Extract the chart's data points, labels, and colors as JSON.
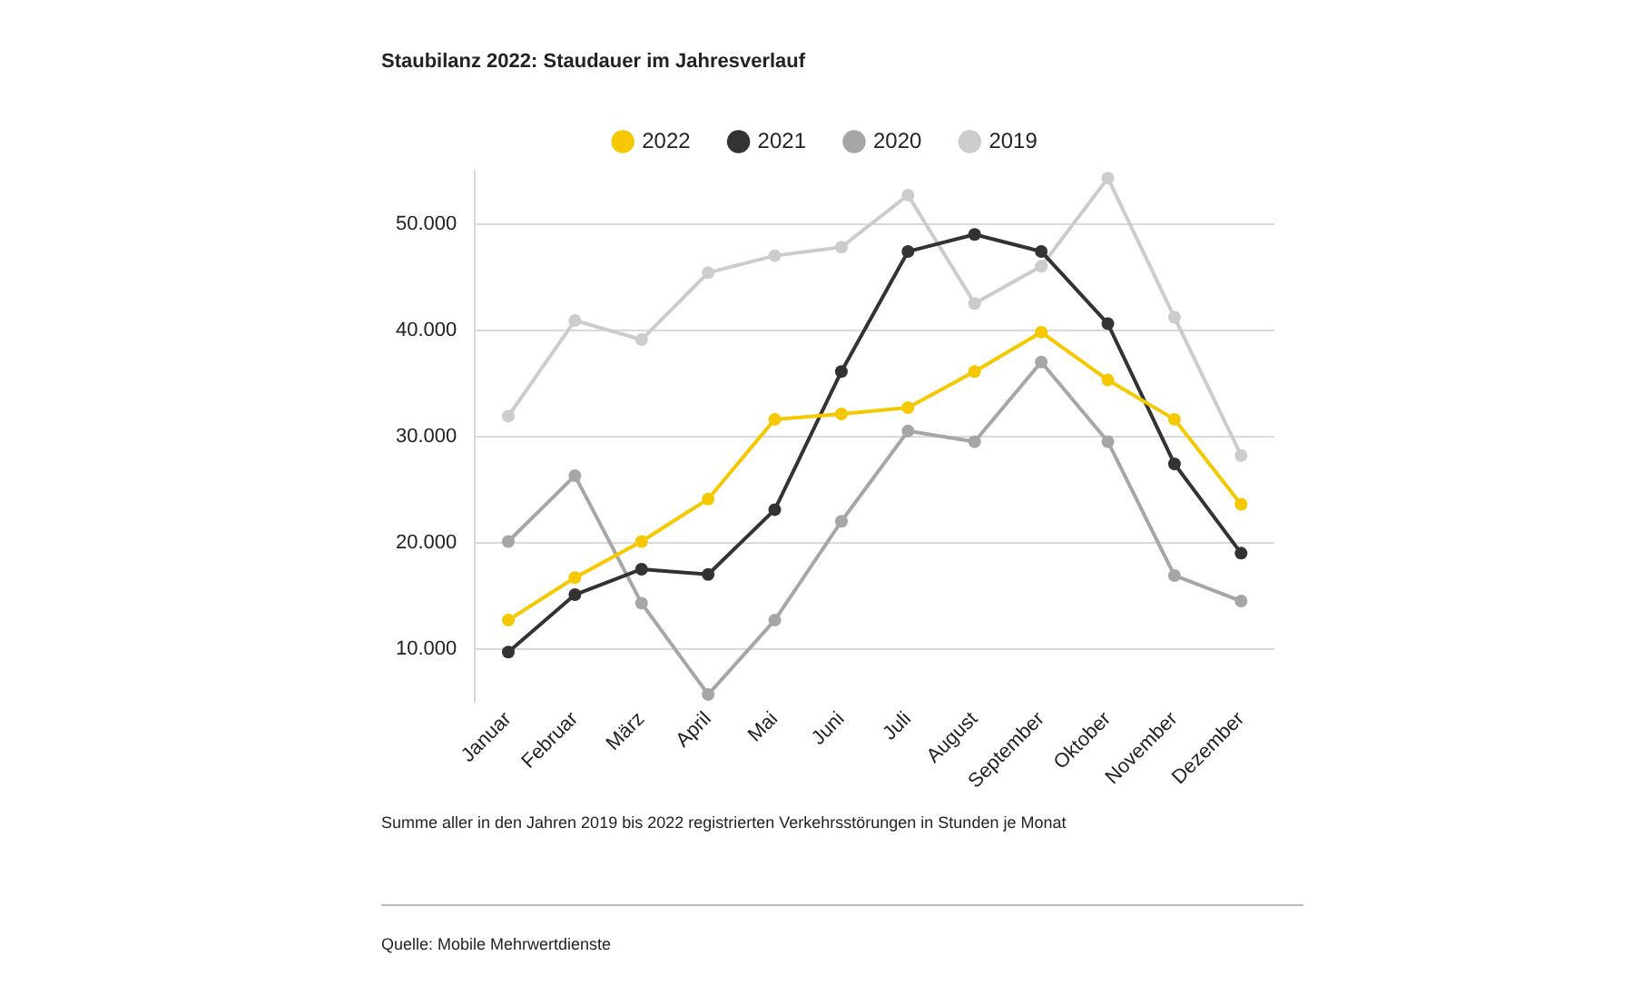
{
  "chart_data": {
    "type": "line",
    "title": "Staubilanz 2022: Staudauer im Jahresverlauf",
    "categories": [
      "Januar",
      "Februar",
      "März",
      "April",
      "Mai",
      "Juni",
      "Juli",
      "August",
      "September",
      "Oktober",
      "November",
      "Dezember"
    ],
    "series": [
      {
        "name": "2022",
        "color": "#f5c800",
        "values": [
          12700,
          16700,
          20100,
          24100,
          31600,
          32100,
          32700,
          36100,
          39800,
          35300,
          31600,
          23600
        ]
      },
      {
        "name": "2021",
        "color": "#333333",
        "values": [
          9700,
          15100,
          17500,
          17000,
          23100,
          36100,
          47400,
          49000,
          47400,
          40600,
          27400,
          19000
        ]
      },
      {
        "name": "2020",
        "color": "#a6a6a6",
        "values": [
          20100,
          26300,
          14300,
          5700,
          12700,
          22000,
          30500,
          29500,
          37000,
          29500,
          16900,
          14500
        ]
      },
      {
        "name": "2019",
        "color": "#cccccc",
        "values": [
          31900,
          40900,
          39100,
          45400,
          47000,
          47800,
          52700,
          42500,
          46000,
          54300,
          41200,
          28200
        ]
      }
    ],
    "ylim": [
      5000,
      55000
    ],
    "yticks": [
      {
        "value": 10000,
        "label": "10.000"
      },
      {
        "value": 20000,
        "label": "20.000"
      },
      {
        "value": 30000,
        "label": "30.000"
      },
      {
        "value": 40000,
        "label": "40.000"
      },
      {
        "value": 50000,
        "label": "50.000"
      }
    ],
    "grid": "y",
    "legend": "top",
    "marker": "circle",
    "line_style": "solid",
    "annotations": [
      "Summe aller in den Jahren 2019 bis 2022 registrierten Verkehrsstörungen in Stunden je Monat",
      "Quelle: Mobile Mehrwertdienste"
    ]
  }
}
